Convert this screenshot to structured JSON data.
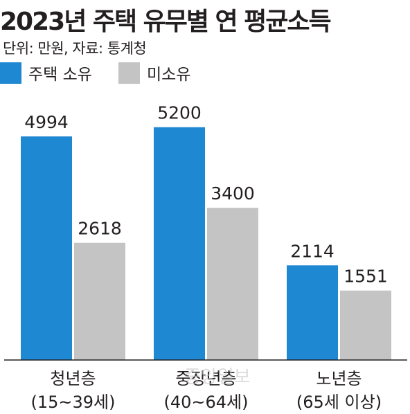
{
  "chart_data": {
    "type": "bar",
    "title": "2023년 주택 유무별 연 평균소득",
    "subtitle": "단위: 만원, 자료: 통계청",
    "categories": [
      {
        "line1": "청년층",
        "line2": "(15~39세)"
      },
      {
        "line1": "중장년층",
        "line2": "(40~64세)"
      },
      {
        "line1": "노년층",
        "line2": "(65세 이상)"
      }
    ],
    "series": [
      {
        "name": "주택 소유",
        "color": "#1e88d2",
        "values": [
          4994,
          5200,
          2114
        ]
      },
      {
        "name": "미소유",
        "color": "#c4c4c4",
        "values": [
          2618,
          3400,
          1551
        ]
      }
    ],
    "ylim": [
      0,
      6000
    ],
    "grid": false,
    "legend": "top-left",
    "data_labels": true
  },
  "watermark": "중앙일보"
}
